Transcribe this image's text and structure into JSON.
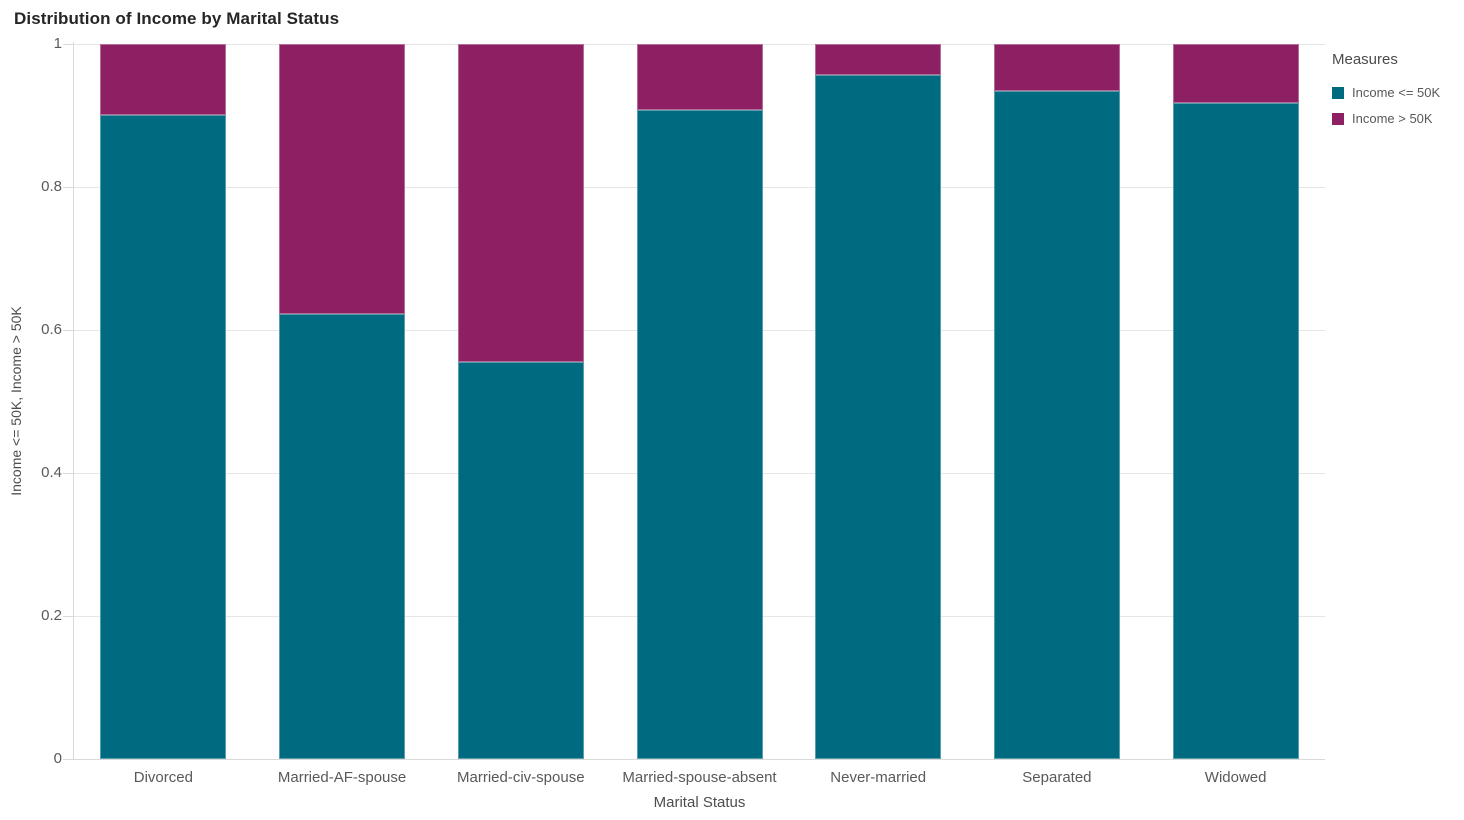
{
  "title": "Distribution of Income by Marital Status",
  "legend": {
    "title": "Measures",
    "items": [
      {
        "label": "Income <= 50K",
        "color": "#006A80"
      },
      {
        "label": "Income > 50K",
        "color": "#8C2063"
      }
    ]
  },
  "colors": {
    "income_le_50k": "#006A80",
    "income_gt_50k": "#8C2063",
    "gridline": "#e6e6e6",
    "axis_line": "#d9d9d9",
    "tick_text": "#595959"
  },
  "chart_data": {
    "type": "bar",
    "stacked": true,
    "normalized": true,
    "title": "Distribution of Income by Marital Status",
    "xlabel": "Marital Status",
    "ylabel": "Income <= 50K, Income > 50K",
    "legend_title": "Measures",
    "legend_position": "right",
    "grid": true,
    "ylim": [
      0,
      1
    ],
    "yticks": [
      0,
      0.2,
      0.4,
      0.6,
      0.8,
      1
    ],
    "categories": [
      "Divorced",
      "Married-AF-spouse",
      "Married-civ-spouse",
      "Married-spouse-absent",
      "Never-married",
      "Separated",
      "Widowed"
    ],
    "series": [
      {
        "name": "Income <= 50K",
        "color": "#006A80",
        "values": [
          0.9,
          0.622,
          0.555,
          0.908,
          0.956,
          0.934,
          0.917
        ]
      },
      {
        "name": "Income > 50K",
        "color": "#8C2063",
        "values": [
          0.1,
          0.378,
          0.445,
          0.092,
          0.044,
          0.066,
          0.083
        ]
      }
    ]
  }
}
